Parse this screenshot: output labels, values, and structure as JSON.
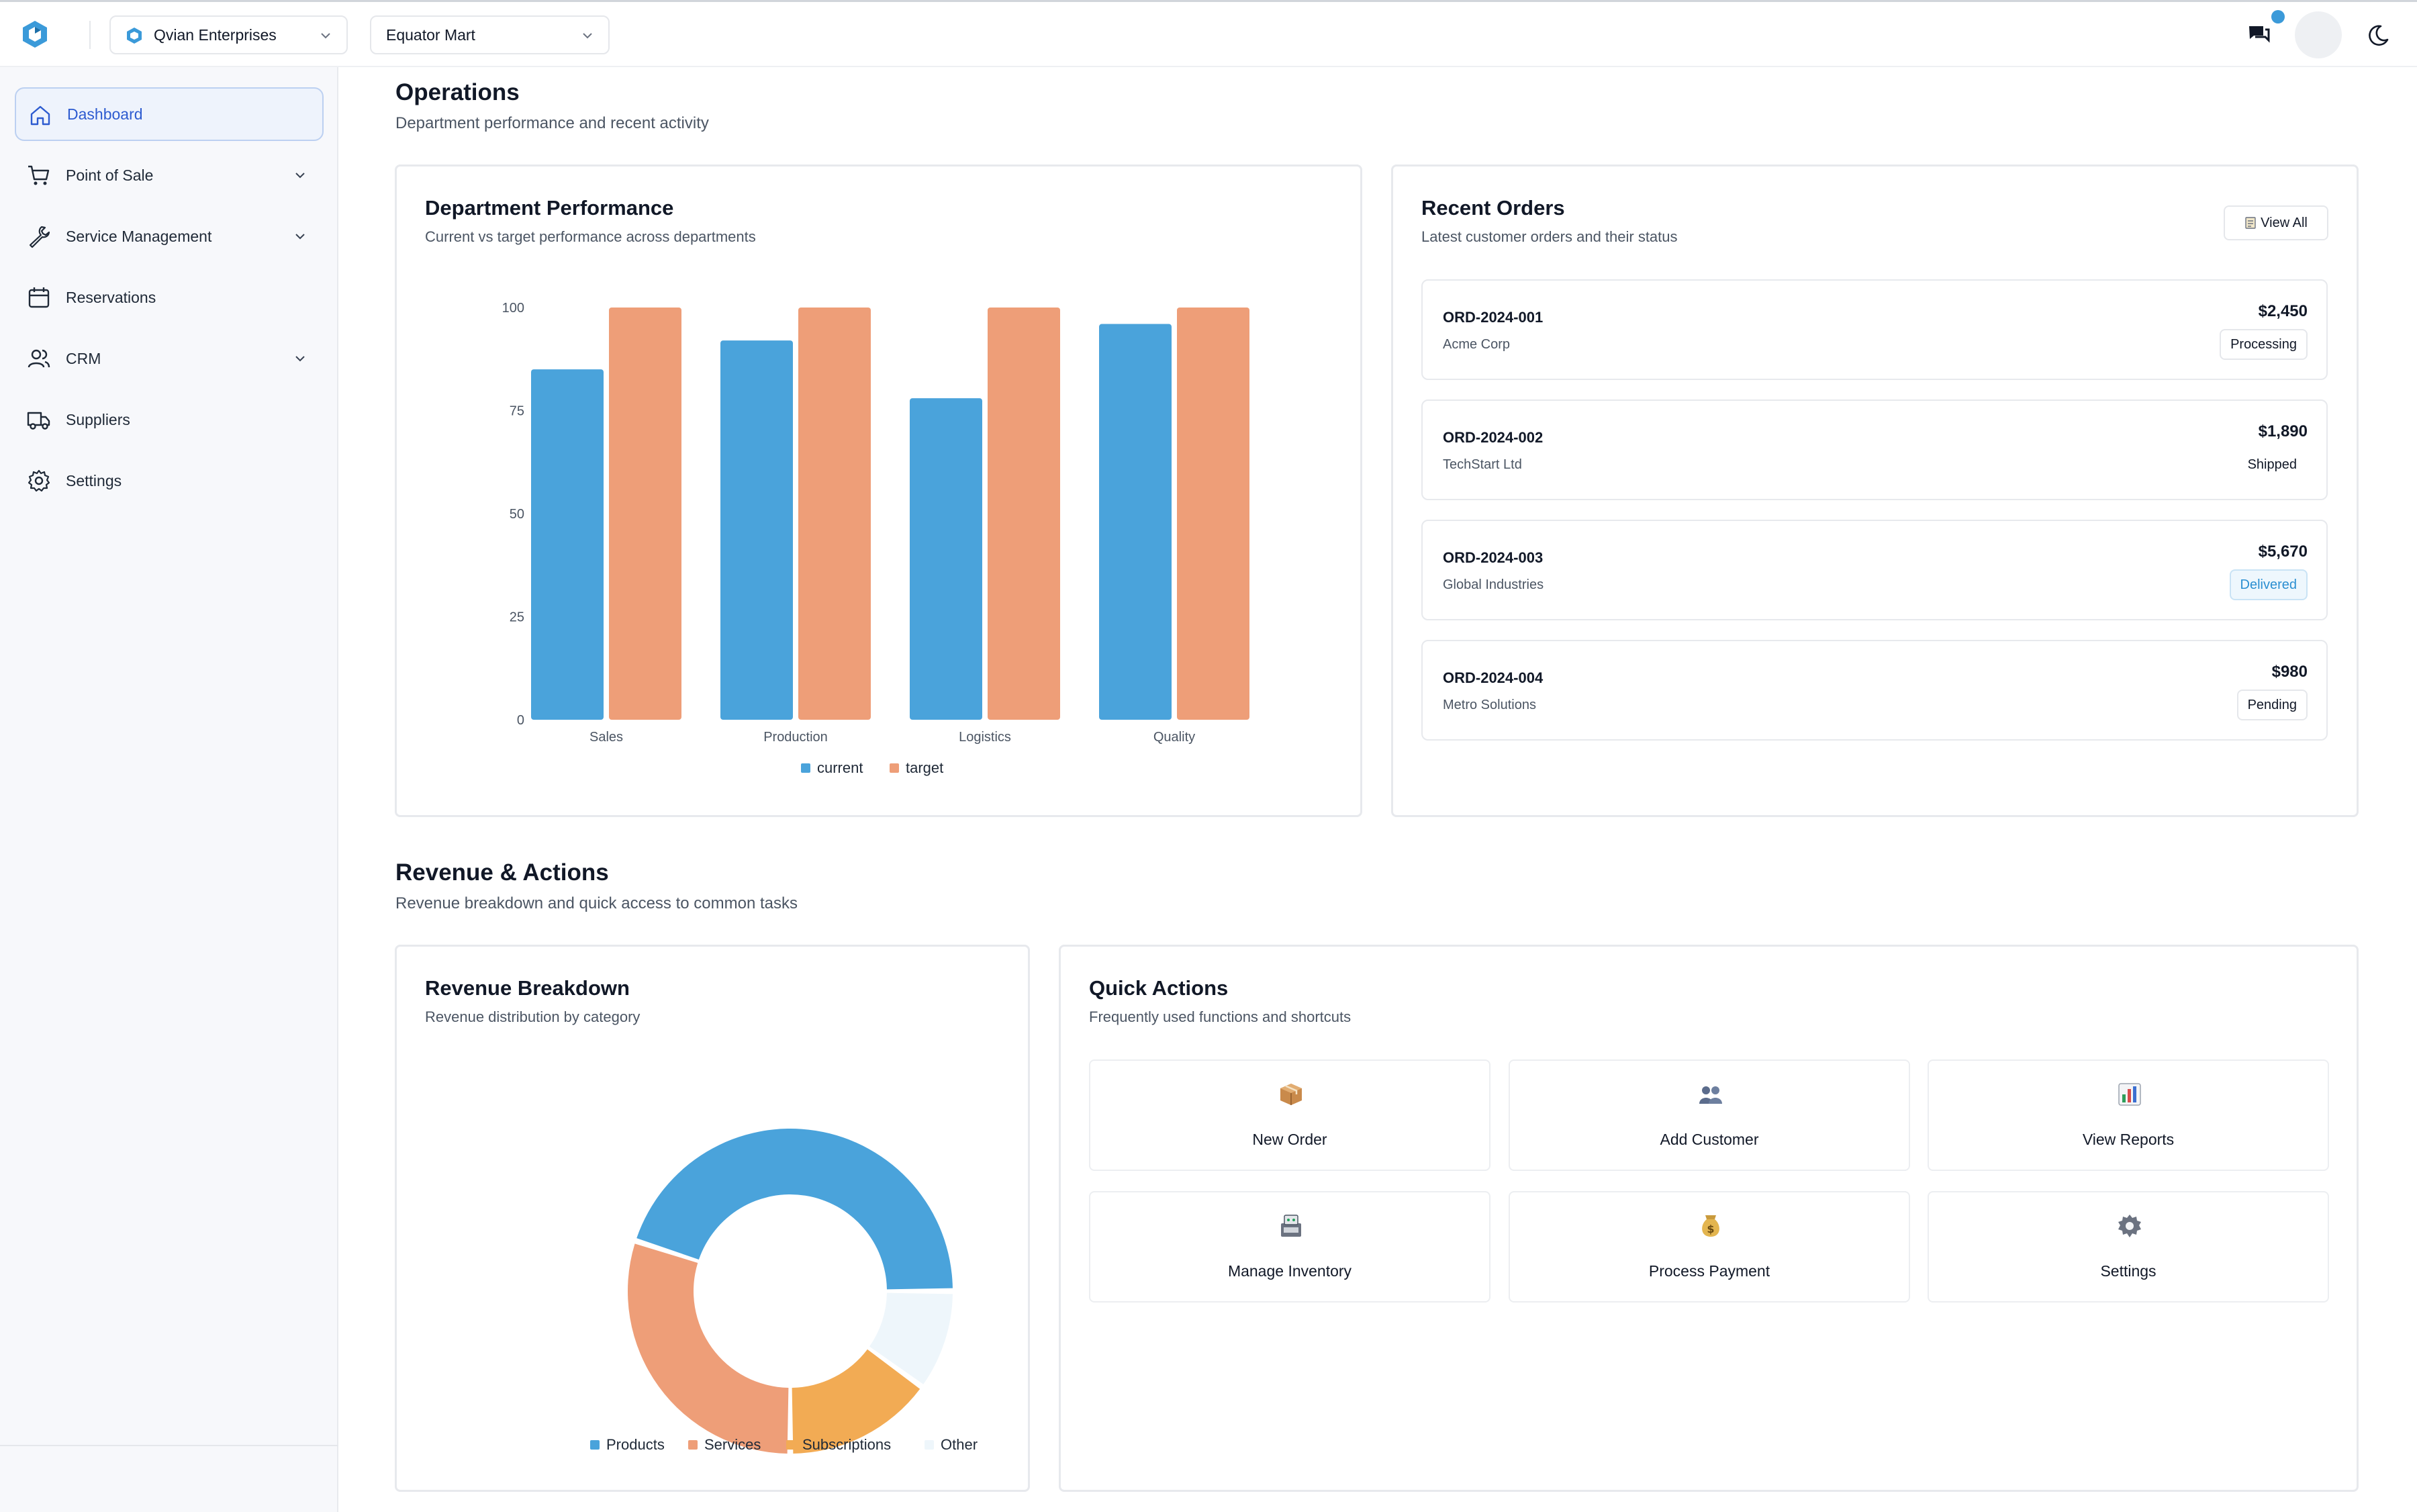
{
  "header": {
    "org_select": "Qvian Enterprises",
    "store_select": "Equator Mart"
  },
  "sidebar": {
    "items": [
      {
        "label": "Dashboard",
        "icon": "home-icon",
        "active": true,
        "expandable": false
      },
      {
        "label": "Point of Sale",
        "icon": "cart-icon",
        "active": false,
        "expandable": true
      },
      {
        "label": "Service Management",
        "icon": "wrench-icon",
        "active": false,
        "expandable": true
      },
      {
        "label": "Reservations",
        "icon": "calendar-icon",
        "active": false,
        "expandable": false
      },
      {
        "label": "CRM",
        "icon": "users-icon",
        "active": false,
        "expandable": true
      },
      {
        "label": "Suppliers",
        "icon": "truck-icon",
        "active": false,
        "expandable": false
      },
      {
        "label": "Settings",
        "icon": "gear-icon",
        "active": false,
        "expandable": false
      }
    ]
  },
  "operations": {
    "title": "Operations",
    "subtitle": "Department performance and recent activity"
  },
  "department_performance": {
    "title": "Department Performance",
    "subtitle": "Current vs target performance across departments"
  },
  "chart_data": [
    {
      "type": "bar",
      "categories": [
        "Sales",
        "Production",
        "Logistics",
        "Quality"
      ],
      "series": [
        {
          "name": "current",
          "values": [
            85,
            92,
            78,
            96
          ],
          "color": "#4aa3db"
        },
        {
          "name": "target",
          "values": [
            100,
            100,
            100,
            100
          ],
          "color": "#ee9e78"
        }
      ],
      "y_ticks": [
        "0",
        "25",
        "50",
        "75",
        "100"
      ],
      "ylim": [
        0,
        100
      ],
      "grid": false,
      "legend": "bottom-center"
    },
    {
      "type": "pie",
      "donut": true,
      "categories": [
        "Products",
        "Services",
        "Subscriptions",
        "Other"
      ],
      "values": [
        45,
        30,
        15,
        10
      ],
      "colors": [
        "#4aa3db",
        "#ee9e78",
        "#f2ab54",
        "#eef6fb"
      ],
      "legend": "bottom-center"
    }
  ],
  "recent_orders": {
    "title": "Recent Orders",
    "subtitle": "Latest customer orders and their status",
    "view_all": "View All",
    "orders": [
      {
        "id": "ORD-2024-001",
        "customer": "Acme Corp",
        "amount": "$2,450",
        "status": "Processing",
        "status_style": "outline"
      },
      {
        "id": "ORD-2024-002",
        "customer": "TechStart Ltd",
        "amount": "$1,890",
        "status": "Shipped",
        "status_style": "plain"
      },
      {
        "id": "ORD-2024-003",
        "customer": "Global Industries",
        "amount": "$5,670",
        "status": "Delivered",
        "status_style": "info"
      },
      {
        "id": "ORD-2024-004",
        "customer": "Metro Solutions",
        "amount": "$980",
        "status": "Pending",
        "status_style": "outline"
      }
    ]
  },
  "revenue_actions": {
    "title": "Revenue & Actions",
    "subtitle": "Revenue breakdown and quick access to common tasks"
  },
  "revenue_breakdown": {
    "title": "Revenue Breakdown",
    "subtitle": "Revenue distribution by category"
  },
  "quick_actions": {
    "title": "Quick Actions",
    "subtitle": "Frequently used functions and shortcuts",
    "items": [
      {
        "label": "New Order",
        "icon": "package-icon"
      },
      {
        "label": "Add Customer",
        "icon": "people-icon"
      },
      {
        "label": "View Reports",
        "icon": "bar-chart-icon"
      },
      {
        "label": "Manage Inventory",
        "icon": "inventory-icon"
      },
      {
        "label": "Process Payment",
        "icon": "money-bag-icon"
      },
      {
        "label": "Settings",
        "icon": "gear-icon"
      }
    ]
  }
}
